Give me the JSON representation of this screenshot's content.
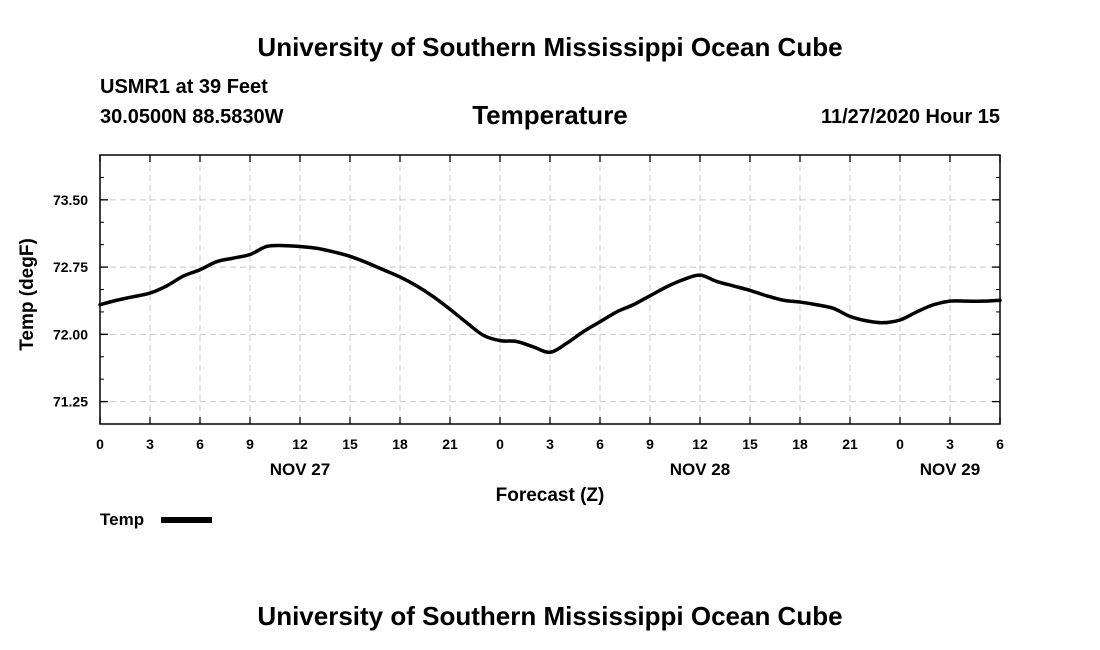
{
  "header": {
    "title": "University of Southern Mississippi Ocean Cube",
    "station": "USMR1 at 39 Feet",
    "location": "30.0500N 88.5830W",
    "chart_title": "Temperature",
    "timestamp": "11/27/2020 Hour 15"
  },
  "footer": {
    "title": "University of Southern Mississippi Ocean Cube"
  },
  "legend": {
    "label": "Temp"
  },
  "chart_data": {
    "type": "line",
    "title": "Temperature",
    "xlabel": "Forecast (Z)",
    "ylabel": "Temp (degF)",
    "xlim": [
      0,
      54
    ],
    "ylim": [
      71.0,
      74.0
    ],
    "x_ticks": [
      0,
      3,
      6,
      9,
      12,
      15,
      18,
      21,
      24,
      27,
      30,
      33,
      36,
      39,
      42,
      45,
      48,
      51,
      54
    ],
    "x_tick_labels": [
      "0",
      "3",
      "6",
      "9",
      "12",
      "15",
      "18",
      "21",
      "0",
      "3",
      "6",
      "9",
      "12",
      "15",
      "18",
      "21",
      "0",
      "3",
      "6"
    ],
    "y_ticks": [
      71.25,
      72.0,
      72.75,
      73.5
    ],
    "y_tick_labels": [
      "71.25",
      "72.00",
      "72.75",
      "73.50"
    ],
    "day_labels": [
      {
        "x": 12,
        "label": "NOV 27"
      },
      {
        "x": 36,
        "label": "NOV 28"
      },
      {
        "x": 51,
        "label": "NOV 29"
      }
    ],
    "grid": true,
    "series": [
      {
        "name": "Temp",
        "color": "#000000",
        "x": [
          0,
          1,
          2,
          3,
          4,
          5,
          6,
          7,
          8,
          9,
          10,
          11,
          12,
          13,
          14,
          15,
          16,
          17,
          18,
          19,
          20,
          21,
          22,
          23,
          24,
          25,
          26,
          27,
          28,
          29,
          30,
          31,
          32,
          33,
          34,
          35,
          36,
          37,
          38,
          39,
          40,
          41,
          42,
          43,
          44,
          45,
          46,
          47,
          48,
          49,
          50,
          51,
          52,
          53,
          54
        ],
        "values": [
          72.33,
          72.38,
          72.42,
          72.46,
          72.54,
          72.65,
          72.72,
          72.81,
          72.85,
          72.89,
          72.98,
          72.99,
          72.98,
          72.96,
          72.92,
          72.87,
          72.8,
          72.72,
          72.64,
          72.54,
          72.42,
          72.28,
          72.13,
          71.99,
          71.93,
          71.92,
          71.86,
          71.8,
          71.9,
          72.03,
          72.14,
          72.25,
          72.33,
          72.43,
          72.53,
          72.61,
          72.66,
          72.59,
          72.54,
          72.49,
          72.43,
          72.38,
          72.36,
          72.33,
          72.29,
          72.2,
          72.15,
          72.13,
          72.16,
          72.25,
          72.33,
          72.37,
          72.37,
          72.37,
          72.38
        ]
      }
    ]
  }
}
